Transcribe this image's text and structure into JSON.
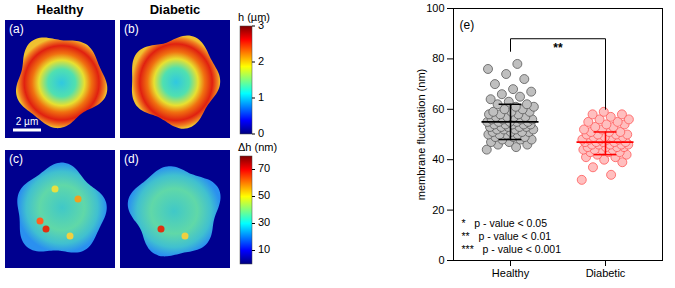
{
  "figure_panels": {
    "columns": [
      "Healthy",
      "Diabetic"
    ],
    "panels": [
      {
        "label": "(a)"
      },
      {
        "label": "(b)"
      },
      {
        "label": "(c)"
      },
      {
        "label": "(d)"
      }
    ],
    "scale_bar": "2 µm",
    "colorbars": [
      {
        "title": "h (µm)",
        "range": [
          0,
          3
        ],
        "ticks": [
          0,
          1,
          2,
          3
        ]
      },
      {
        "title": "Δh (nm)",
        "range": [
          0,
          80
        ],
        "ticks": [
          10,
          30,
          50,
          70
        ]
      }
    ]
  },
  "chart_data": {
    "type": "scatter",
    "panel_label": "(e)",
    "y_label": "membrane fluctuation (nm)",
    "categories": [
      "Healthy",
      "Diabetic"
    ],
    "values": [
      [
        44,
        45,
        46,
        46,
        47,
        47,
        48,
        48,
        48,
        49,
        49,
        49,
        50,
        50,
        50,
        50,
        51,
        51,
        51,
        51,
        52,
        52,
        52,
        52,
        53,
        53,
        53,
        53,
        53,
        54,
        54,
        54,
        54,
        54,
        55,
        55,
        55,
        55,
        55,
        56,
        56,
        56,
        56,
        57,
        57,
        57,
        57,
        58,
        58,
        58,
        59,
        59,
        59,
        60,
        60,
        61,
        61,
        62,
        62,
        63,
        64,
        65,
        66,
        67,
        68,
        70,
        72,
        74,
        76,
        78
      ],
      [
        32,
        34,
        37,
        39,
        40,
        41,
        41,
        42,
        42,
        43,
        43,
        43,
        44,
        44,
        44,
        44,
        45,
        45,
        45,
        45,
        46,
        46,
        46,
        46,
        46,
        47,
        47,
        47,
        47,
        47,
        48,
        48,
        48,
        48,
        48,
        49,
        49,
        49,
        49,
        50,
        50,
        50,
        50,
        51,
        51,
        51,
        52,
        52,
        53,
        53,
        54,
        54,
        55,
        55,
        56,
        56,
        57,
        58,
        58,
        59
      ]
    ],
    "means": [
      55,
      47
    ],
    "error_low": [
      48,
      42
    ],
    "error_high": [
      62,
      51
    ],
    "colors": [
      "#000000",
      "#ff0000"
    ],
    "significance": {
      "label": "**",
      "y": 88,
      "ends": [
        83,
        60
      ]
    },
    "annotations": [
      "*   p - value < 0.05",
      "**   p - value < 0.01",
      "***   p - value < 0.001"
    ],
    "ylim": [
      0,
      100
    ],
    "yticks": [
      0,
      20,
      40,
      60,
      80,
      100
    ]
  }
}
